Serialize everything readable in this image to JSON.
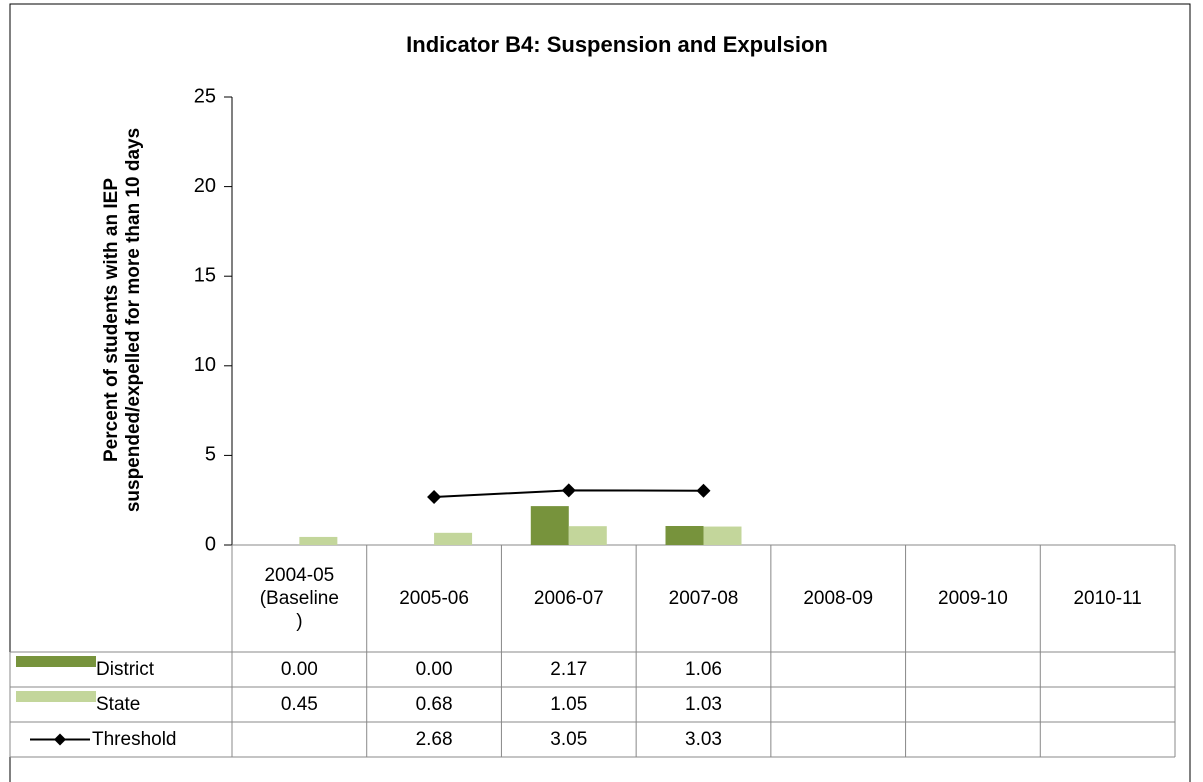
{
  "chart_data": {
    "type": "bar",
    "title": "Indicator B4: Suspension and Expulsion",
    "ylabel": [
      "Percent of students with an IEP",
      "suspended/expelled for more than 10 days"
    ],
    "categories": [
      "2004-05 (Baseline)",
      "2005-06",
      "2006-07",
      "2007-08",
      "2008-09",
      "2009-10",
      "2010-11"
    ],
    "series": [
      {
        "name": "District",
        "type": "bar",
        "color": "#77933c",
        "values": [
          0.0,
          0.0,
          2.17,
          1.06,
          null,
          null,
          null
        ],
        "value_labels": [
          "0.00",
          "0.00",
          "2.17",
          "1.06",
          null,
          null,
          null
        ]
      },
      {
        "name": "State",
        "type": "bar",
        "color": "#c3d69b",
        "values": [
          0.45,
          0.68,
          1.05,
          1.03,
          null,
          null,
          null
        ],
        "value_labels": [
          "0.45",
          "0.68",
          "1.05",
          "1.03",
          null,
          null,
          null
        ]
      },
      {
        "name": "Threshold",
        "type": "line",
        "color": "#000000",
        "values": [
          null,
          2.68,
          3.05,
          3.03,
          null,
          null,
          null
        ],
        "value_labels": [
          null,
          "2.68",
          "3.05",
          "3.03",
          null,
          null,
          null
        ]
      }
    ],
    "ylim": [
      0,
      25
    ],
    "yticks": [
      0,
      5,
      10,
      15,
      20,
      25
    ],
    "grid": false
  }
}
